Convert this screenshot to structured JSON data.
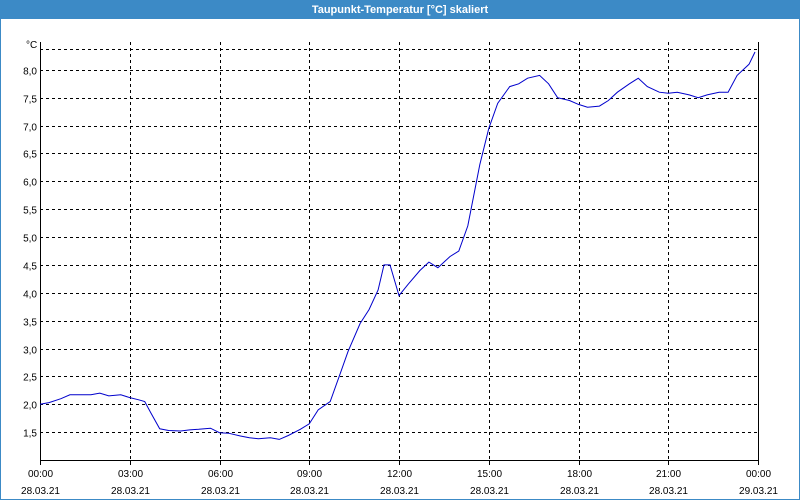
{
  "window": {
    "title": "Taupunkt-Temperatur [°C] skaliert"
  },
  "chart_data": {
    "type": "line",
    "title": "Taupunkt-Temperatur [°C] skaliert",
    "ylabel": "°C",
    "xlabel": "",
    "ylim": [
      1.0,
      8.5
    ],
    "xlim": [
      0,
      24
    ],
    "grid": true,
    "line_color": "#0000cc",
    "y_ticks": [
      "1,5",
      "2,0",
      "2,5",
      "3,0",
      "3,5",
      "4,0",
      "4,5",
      "5,0",
      "5,5",
      "6,0",
      "6,5",
      "7,0",
      "7,5",
      "8,0"
    ],
    "y_tick_values": [
      1.5,
      2.0,
      2.5,
      3.0,
      3.5,
      4.0,
      4.5,
      5.0,
      5.5,
      6.0,
      6.5,
      7.0,
      7.5,
      8.0
    ],
    "x_tick_values": [
      0,
      3,
      6,
      9,
      12,
      15,
      18,
      21,
      24
    ],
    "x_ticks": [
      {
        "time": "00:00",
        "date": "28.03.21"
      },
      {
        "time": "03:00",
        "date": "28.03.21"
      },
      {
        "time": "06:00",
        "date": "28.03.21"
      },
      {
        "time": "09:00",
        "date": "28.03.21"
      },
      {
        "time": "12:00",
        "date": "28.03.21"
      },
      {
        "time": "15:00",
        "date": "28.03.21"
      },
      {
        "time": "18:00",
        "date": "28.03.21"
      },
      {
        "time": "21:00",
        "date": "28.03.21"
      },
      {
        "time": "00:00",
        "date": "29.03.21"
      }
    ],
    "series": [
      {
        "x": [
          0,
          0.3,
          0.7,
          1.0,
          1.3,
          1.7,
          2.0,
          2.3,
          2.7,
          3.0,
          3.3,
          3.5,
          3.7,
          4.0,
          4.3,
          4.7,
          5.0,
          5.3,
          5.7,
          6.0,
          6.3,
          6.7,
          7.0,
          7.3,
          7.7,
          8.0,
          8.3,
          8.7,
          9.0,
          9.3,
          9.7,
          10.0,
          10.3,
          10.7,
          11.0,
          11.3,
          11.5,
          11.7,
          12.0,
          12.3,
          12.7,
          13.0,
          13.3,
          13.7,
          14.0,
          14.3,
          14.7,
          15.0,
          15.3,
          15.7,
          16.0,
          16.3,
          16.7,
          17.0,
          17.3,
          17.7,
          18.0,
          18.3,
          18.7,
          19.0,
          19.3,
          19.7,
          20.0,
          20.3,
          20.7,
          21.0,
          21.3,
          21.7,
          22.0,
          22.3,
          22.7,
          23.0,
          23.3,
          23.7,
          23.9
        ],
        "y": [
          2.0,
          2.03,
          2.1,
          2.17,
          2.17,
          2.17,
          2.2,
          2.15,
          2.17,
          2.12,
          2.08,
          2.05,
          1.85,
          1.56,
          1.53,
          1.52,
          1.54,
          1.55,
          1.57,
          1.49,
          1.48,
          1.43,
          1.4,
          1.38,
          1.4,
          1.37,
          1.44,
          1.55,
          1.65,
          1.9,
          2.05,
          2.5,
          2.95,
          3.45,
          3.7,
          4.05,
          4.5,
          4.5,
          3.95,
          4.15,
          4.4,
          4.55,
          4.45,
          4.65,
          4.75,
          5.2,
          6.3,
          6.95,
          7.4,
          7.7,
          7.75,
          7.85,
          7.9,
          7.75,
          7.5,
          7.45,
          7.38,
          7.33,
          7.35,
          7.45,
          7.6,
          7.75,
          7.85,
          7.7,
          7.6,
          7.58,
          7.6,
          7.55,
          7.5,
          7.55,
          7.6,
          7.6,
          7.9,
          8.1,
          8.32
        ]
      }
    ]
  }
}
